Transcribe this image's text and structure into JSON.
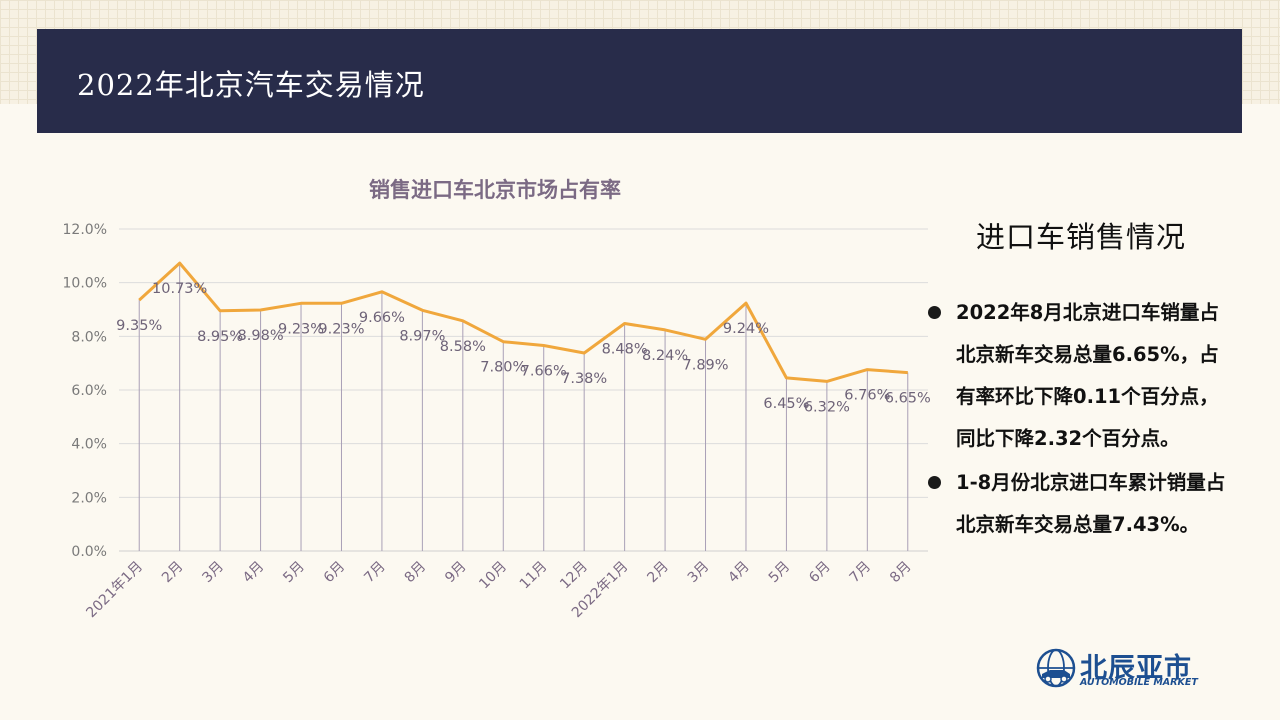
{
  "header": {
    "title": "2022年北京汽车交易情况"
  },
  "colors": {
    "header_bg": "#282c4a",
    "line": "#f0a73c",
    "chart_title": "#7b6a84",
    "logo": "#1d4f91"
  },
  "chart_data": {
    "type": "line",
    "title": "销售进口车北京市场占有率",
    "categories": [
      "2021年1月",
      "2月",
      "3月",
      "4月",
      "5月",
      "6月",
      "7月",
      "8月",
      "9月",
      "10月",
      "11月",
      "12月",
      "2022年1月",
      "2月",
      "3月",
      "4月",
      "5月",
      "6月",
      "7月",
      "8月"
    ],
    "values": [
      9.35,
      10.73,
      8.95,
      8.98,
      9.23,
      9.23,
      9.66,
      8.97,
      8.58,
      7.8,
      7.66,
      7.38,
      8.48,
      8.24,
      7.89,
      9.24,
      6.45,
      6.32,
      6.76,
      6.65
    ],
    "labels": [
      "9.35%",
      "10.73%",
      "8.95%",
      "8.98%",
      "9.23%",
      "9.23%",
      "9.66%",
      "8.97%",
      "8.58%",
      "7.80%",
      "7.66%",
      "7.38%",
      "8.48%",
      "8.24%",
      "7.89%",
      "9.24%",
      "6.45%",
      "6.32%",
      "6.76%",
      "6.65%"
    ],
    "y_ticks": [
      "0.0%",
      "2.0%",
      "4.0%",
      "6.0%",
      "8.0%",
      "10.0%",
      "12.0%"
    ],
    "ylim": [
      0,
      12
    ],
    "grid": true,
    "drop_lines": true
  },
  "side": {
    "heading": "进口车销售情况",
    "bullets": [
      "2022年8月北京进口车销量占北京新车交易总量6.65%，占有率环比下降0.11个百分点，同比下降2.32个百分点。",
      "1-8月份北京进口车累计销量占北京新车交易总量7.43%。"
    ]
  },
  "logo": {
    "name_cn": "北辰亚市",
    "name_en": "AUTOMOBILE MARKET",
    "icon": "globe-car-logo-icon"
  }
}
